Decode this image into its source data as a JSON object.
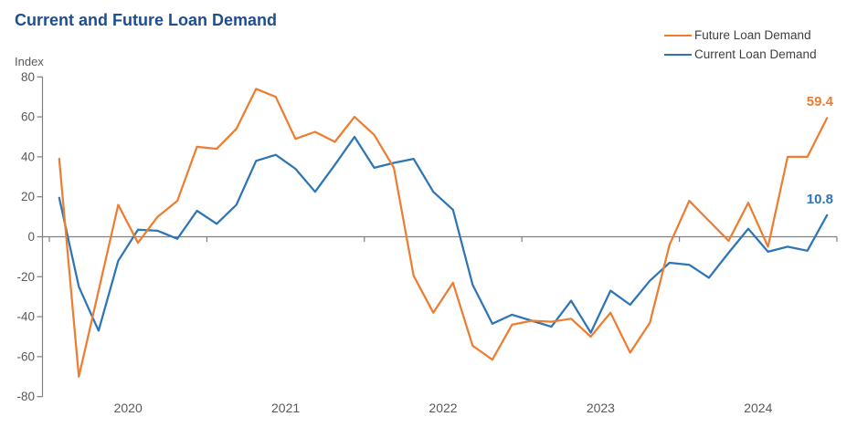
{
  "title": "Current and Future Loan Demand",
  "y_axis_title": "Index",
  "legend": [
    {
      "label": "Future Loan Demand",
      "color": "#ED7D31"
    },
    {
      "label": "Current Loan Demand",
      "color": "#2E75B6"
    }
  ],
  "end_labels": {
    "future": "59.4",
    "current": "10.8"
  },
  "colors": {
    "title": "#1F4E8F",
    "axis_line": "#7F7F7F",
    "axis_text": "#595959",
    "legend_text": "#404040"
  },
  "chart_data": {
    "type": "line",
    "title": "Current and Future Loan Demand",
    "ylabel": "Index",
    "grid": false,
    "legend_position": "top-right",
    "x_axis": {
      "year_labels": [
        "2020",
        "2021",
        "2022",
        "2023",
        "2024"
      ],
      "points_per_year": 8
    },
    "y_axis": {
      "ticks": [
        80,
        60,
        40,
        20,
        0,
        -20,
        -40,
        -60,
        -80
      ],
      "ylim": [
        -80,
        80
      ]
    },
    "series": [
      {
        "name": "Future Loan Demand",
        "color": "#ED7D31",
        "end_label": "59.4",
        "values": [
          39,
          -70,
          -27,
          16,
          -3,
          10,
          18,
          45,
          44,
          54,
          74,
          70,
          49,
          52.5,
          47.5,
          60,
          51,
          34.5,
          -19.5,
          -38,
          -23,
          -54.5,
          -61.5,
          -44,
          -42,
          -42.5,
          -41,
          -50,
          -38,
          -58,
          -43,
          -4,
          18,
          8,
          -2,
          17,
          -5,
          40,
          40,
          59.4
        ]
      },
      {
        "name": "Current Loan Demand",
        "color": "#2E75B6",
        "end_label": "10.8",
        "values": [
          19.5,
          -25,
          -47,
          -12,
          3.5,
          3,
          -1,
          13,
          6.5,
          16,
          38,
          41,
          34,
          22.5,
          36,
          50,
          34.5,
          37,
          39,
          22.5,
          13.5,
          -24,
          -43.5,
          -39,
          -42,
          -45,
          -32,
          -48,
          -27,
          -34,
          -22,
          -13,
          -14,
          -20.5,
          -8,
          4,
          -7.5,
          -5,
          -7,
          10.8
        ]
      }
    ]
  }
}
